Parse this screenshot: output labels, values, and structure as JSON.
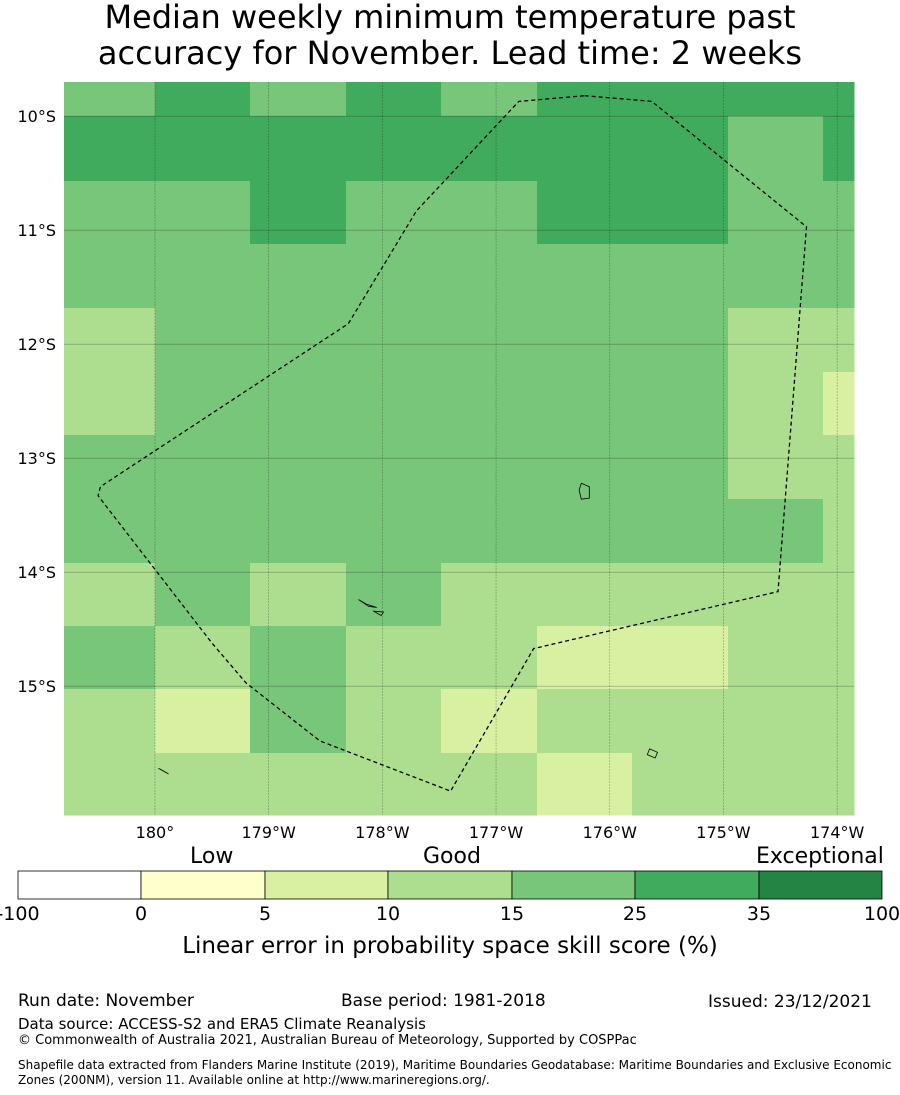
{
  "title_line1": "Median weekly minimum temperature past",
  "title_line2": "accuracy for November. Lead time: 2 weeks",
  "map": {
    "lat_labels": [
      "10°S",
      "11°S",
      "12°S",
      "13°S",
      "14°S",
      "15°S"
    ],
    "lon_labels": [
      "180°",
      "179°W",
      "178°W",
      "177°W",
      "176°W",
      "175°W",
      "174°W"
    ],
    "grid": [
      [
        4,
        5,
        4,
        5,
        4,
        5,
        5,
        5,
        5
      ],
      [
        5,
        5,
        5,
        5,
        5,
        5,
        5,
        4,
        5
      ],
      [
        4,
        4,
        5,
        4,
        4,
        5,
        5,
        4,
        4
      ],
      [
        4,
        4,
        4,
        4,
        4,
        4,
        4,
        4,
        4
      ],
      [
        3,
        4,
        4,
        4,
        4,
        4,
        4,
        3,
        3
      ],
      [
        3,
        4,
        4,
        4,
        4,
        4,
        4,
        3,
        2
      ],
      [
        4,
        4,
        4,
        4,
        4,
        4,
        4,
        3,
        3
      ],
      [
        4,
        4,
        4,
        4,
        4,
        4,
        4,
        4,
        3
      ],
      [
        3,
        4,
        3,
        4,
        3,
        3,
        3,
        3,
        3
      ],
      [
        4,
        3,
        4,
        3,
        3,
        2,
        2,
        3,
        3
      ],
      [
        3,
        2,
        4,
        3,
        2,
        3,
        3,
        3,
        3
      ],
      [
        3,
        3,
        3,
        3,
        3,
        2,
        3,
        3,
        3
      ]
    ],
    "eez_boundary": [
      [
        -176.22,
        -9.82
      ],
      [
        -175.63,
        -9.87
      ],
      [
        -174.27,
        -10.97
      ],
      [
        -174.52,
        -14.17
      ],
      [
        -176.67,
        -14.67
      ],
      [
        -177.4,
        -15.92
      ],
      [
        -178.55,
        -15.48
      ],
      [
        -179.2,
        -14.97
      ],
      [
        -179.5,
        -14.62
      ],
      [
        -180.5,
        -13.33
      ],
      [
        -180.48,
        -13.25
      ],
      [
        -178.3,
        -11.82
      ],
      [
        -177.7,
        -10.83
      ],
      [
        -176.8,
        -9.87
      ],
      [
        -176.22,
        -9.82
      ]
    ],
    "islands": [
      [
        [
          -176.25,
          -13.22
        ],
        [
          -176.18,
          -13.25
        ],
        [
          -176.18,
          -13.35
        ],
        [
          -176.25,
          -13.36
        ],
        [
          -176.27,
          -13.28
        ],
        [
          -176.25,
          -13.22
        ]
      ],
      [
        [
          -178.21,
          -14.24
        ],
        [
          -178.12,
          -14.3
        ],
        [
          -178.05,
          -14.31
        ],
        [
          -178.14,
          -14.28
        ],
        [
          -178.21,
          -14.24
        ]
      ],
      [
        [
          -178.08,
          -14.34
        ],
        [
          -177.99,
          -14.35
        ],
        [
          -178.01,
          -14.38
        ],
        [
          -178.08,
          -14.34
        ]
      ],
      [
        [
          -175.65,
          -15.55
        ],
        [
          -175.58,
          -15.58
        ],
        [
          -175.6,
          -15.63
        ],
        [
          -175.67,
          -15.6
        ],
        [
          -175.65,
          -15.55
        ]
      ],
      [
        [
          -179.97,
          -15.72
        ],
        [
          -179.88,
          -15.77
        ],
        [
          -179.95,
          -15.73
        ],
        [
          -179.97,
          -15.72
        ]
      ]
    ]
  },
  "colorbar": {
    "category_labels": [
      "Low",
      "Good",
      "Exceptional"
    ],
    "ticks": [
      "-100",
      "0",
      "5",
      "10",
      "15",
      "25",
      "35",
      "100"
    ],
    "colors": [
      "#ffffff",
      "#ffffcc",
      "#d9f0a3",
      "#addd8e",
      "#78c679",
      "#41ab5d",
      "#238443"
    ],
    "axis_label": "Linear error in probability space skill score (%)"
  },
  "footer": {
    "run_date": "Run date: November",
    "base_period": "Base period: 1981-2018",
    "issued": "Issued: 23/12/2021",
    "data_source": "Data source: ACCESS-S2 and ERA5 Climate Reanalysis",
    "copyright": "© Commonwealth of Australia 2021, Australian Bureau of Meteorology, Supported by COSPPac",
    "shapefile_line1": "Shapefile data extracted from Flanders Marine Institute (2019), Maritime Boundaries Geodatabase: Maritime Boundaries and Exclusive Economic",
    "shapefile_line2": "Zones (200NM), version 11. Available online at http://www.marineregions.org/."
  }
}
